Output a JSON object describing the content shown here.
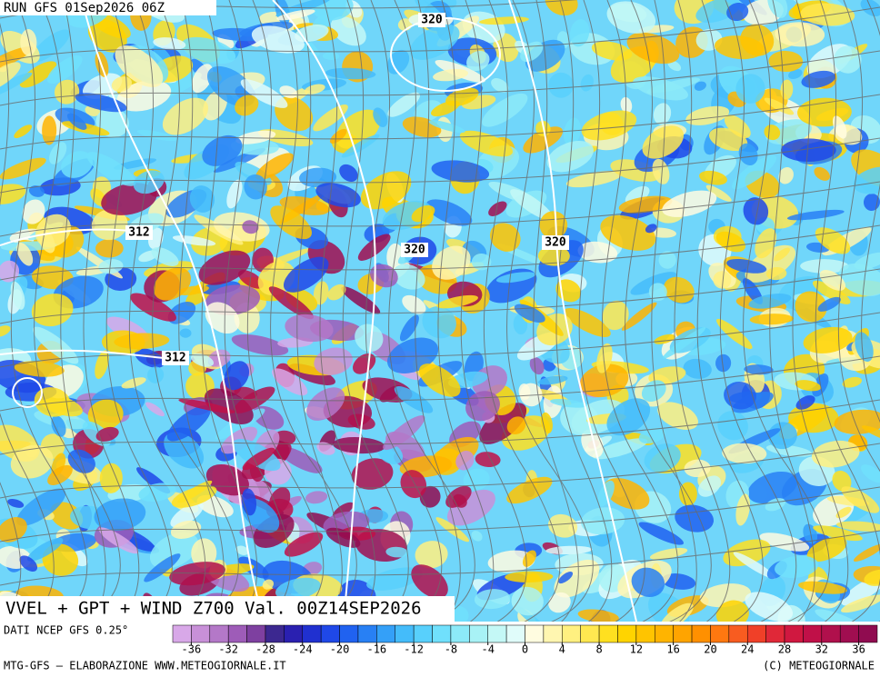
{
  "header": {
    "run": "RUN GFS 01Sep2026 06Z"
  },
  "map": {
    "contour_labels": [
      "320",
      "312",
      "320",
      "320",
      "312"
    ],
    "title": "VVEL + GPT + WIND Z700 Val. 00Z14SEP2026"
  },
  "legend": {
    "source": "DATI NCEP GFS 0.25°",
    "ticks": [
      -36,
      -32,
      -28,
      -24,
      -20,
      -16,
      -12,
      -8,
      -4,
      0,
      4,
      8,
      12,
      16,
      20,
      24,
      28,
      32,
      36
    ],
    "colors": [
      "#d8a8e8",
      "#c890d8",
      "#b478c8",
      "#9e5cb8",
      "#7e40a0",
      "#3c2890",
      "#2a20b0",
      "#2030d0",
      "#1f48e8",
      "#2062f0",
      "#2880f4",
      "#34a0f8",
      "#44bcfa",
      "#58d0fc",
      "#70e0fc",
      "#8ceaf8",
      "#a8f2f6",
      "#c4f8f6",
      "#e0fcfa",
      "#fffce0",
      "#fff6b0",
      "#fff080",
      "#ffe850",
      "#ffe020",
      "#ffd400",
      "#ffc400",
      "#ffb400",
      "#ffa400",
      "#ff9000",
      "#ff7810",
      "#f85c20",
      "#f04028",
      "#e02838",
      "#d01840",
      "#c01048",
      "#b0104c",
      "#a00e50",
      "#900c50"
    ]
  },
  "footer": {
    "left": "MTG-GFS — ELABORAZIONE WWW.METEOGIORNALE.IT",
    "right": "(C) METEOGIORNALE"
  }
}
